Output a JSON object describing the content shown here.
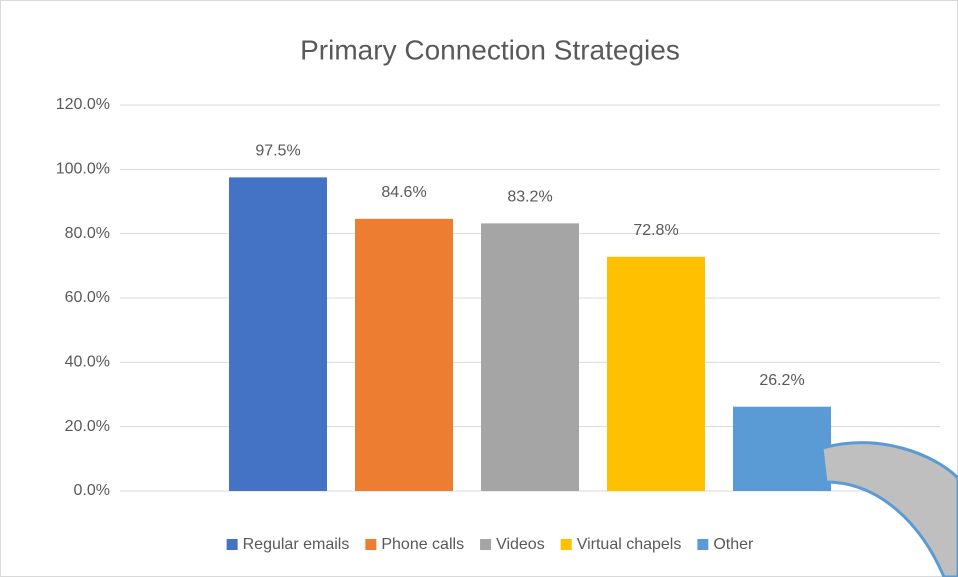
{
  "chart_data": {
    "type": "bar",
    "title": "Primary Connection Strategies",
    "categories": [
      null
    ],
    "series": [
      {
        "name": "Regular emails",
        "color": "#4472c4",
        "values": [
          97.5
        ],
        "value_labels": [
          "97.5%"
        ]
      },
      {
        "name": "Phone calls",
        "color": "#ed7d31",
        "values": [
          84.6
        ],
        "value_labels": [
          "84.6%"
        ]
      },
      {
        "name": "Videos",
        "color": "#a5a5a5",
        "values": [
          83.2
        ],
        "value_labels": [
          "83.2%"
        ]
      },
      {
        "name": "Virtual chapels",
        "color": "#ffc000",
        "values": [
          72.8
        ],
        "value_labels": [
          "72.8%"
        ]
      },
      {
        "name": "Other",
        "color": "#5b9bd5",
        "values": [
          26.2
        ],
        "value_labels": [
          "26.2%"
        ]
      }
    ],
    "ylim": [
      0,
      120
    ],
    "yticks": [
      {
        "value": 0,
        "label": "0.0%"
      },
      {
        "value": 20,
        "label": "20.0%"
      },
      {
        "value": 40,
        "label": "40.0%"
      },
      {
        "value": 60,
        "label": "60.0%"
      },
      {
        "value": 80,
        "label": "80.0%"
      },
      {
        "value": 100,
        "label": "100.0%"
      },
      {
        "value": 120,
        "label": "120.0%"
      }
    ],
    "grid": true,
    "legend": "bottom"
  }
}
